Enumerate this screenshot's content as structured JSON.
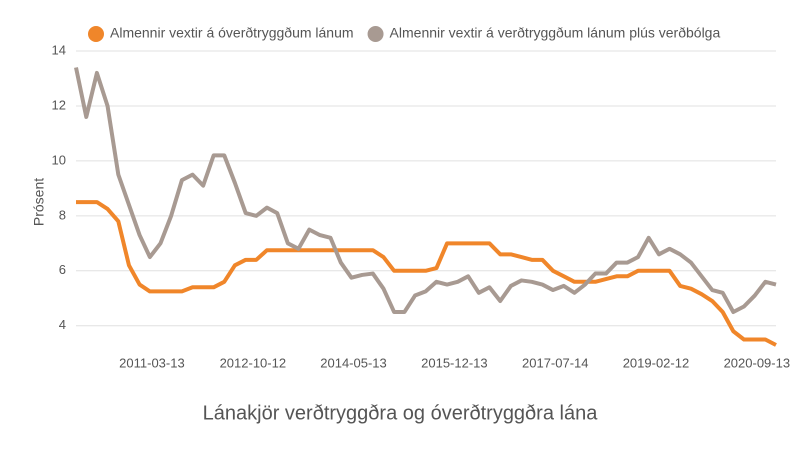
{
  "chart_data": {
    "type": "line",
    "x_label": "Lánakjör verðtryggðra og óverðtryggðra lána",
    "y_label": "Prósent",
    "x": [
      "2010-01-01",
      "2010-03-01",
      "2010-05-01",
      "2010-07-01",
      "2010-09-01",
      "2010-11-01",
      "2011-01-01",
      "2011-03-01",
      "2011-05-01",
      "2011-07-01",
      "2011-09-01",
      "2011-11-01",
      "2012-01-01",
      "2012-03-01",
      "2012-05-01",
      "2012-07-01",
      "2012-09-01",
      "2012-11-01",
      "2013-01-01",
      "2013-03-01",
      "2013-05-01",
      "2013-07-01",
      "2013-09-01",
      "2013-11-01",
      "2014-01-01",
      "2014-03-01",
      "2014-05-01",
      "2014-07-01",
      "2014-09-01",
      "2014-11-01",
      "2015-01-01",
      "2015-03-01",
      "2015-05-01",
      "2015-07-01",
      "2015-09-01",
      "2015-11-01",
      "2016-01-01",
      "2016-03-01",
      "2016-05-01",
      "2016-07-01",
      "2016-09-01",
      "2016-11-01",
      "2017-01-01",
      "2017-03-01",
      "2017-05-01",
      "2017-07-01",
      "2017-09-01",
      "2017-11-01",
      "2018-01-01",
      "2018-03-01",
      "2018-05-01",
      "2018-07-01",
      "2018-09-01",
      "2018-11-01",
      "2019-01-01",
      "2019-03-01",
      "2019-05-01",
      "2019-07-01",
      "2019-09-01",
      "2019-11-01",
      "2020-01-01",
      "2020-03-01",
      "2020-05-01",
      "2020-07-01",
      "2020-09-01",
      "2020-11-01",
      "2021-01-01"
    ],
    "series": [
      {
        "name": "Almennir vextir á óverðtryggðum lánum",
        "color": "#f0862a",
        "values": [
          8.5,
          8.5,
          8.5,
          8.25,
          7.8,
          6.2,
          5.5,
          5.25,
          5.25,
          5.25,
          5.25,
          5.4,
          5.4,
          5.4,
          5.6,
          6.2,
          6.4,
          6.4,
          6.75,
          6.75,
          6.75,
          6.75,
          6.75,
          6.75,
          6.75,
          6.75,
          6.75,
          6.75,
          6.75,
          6.5,
          6.0,
          6.0,
          6.0,
          6.0,
          6.1,
          7.0,
          7.0,
          7.0,
          7.0,
          7.0,
          6.6,
          6.6,
          6.5,
          6.4,
          6.4,
          6.0,
          5.8,
          5.6,
          5.6,
          5.6,
          5.7,
          5.8,
          5.8,
          6.0,
          6.0,
          6.0,
          6.0,
          5.45,
          5.35,
          5.15,
          4.9,
          4.5,
          3.8,
          3.5,
          3.5,
          3.5,
          3.3
        ]
      },
      {
        "name": "Almennir vextir á verðtryggðum lánum plús verðbólga",
        "color": "#a89a92",
        "values": [
          13.4,
          11.6,
          13.2,
          12.0,
          9.5,
          8.4,
          7.3,
          6.5,
          7.0,
          8.0,
          9.3,
          9.5,
          9.1,
          10.2,
          10.2,
          9.2,
          8.1,
          8.0,
          8.3,
          8.1,
          7.0,
          6.8,
          7.5,
          7.3,
          7.2,
          6.3,
          5.75,
          5.85,
          5.9,
          5.35,
          4.5,
          4.5,
          5.1,
          5.25,
          5.6,
          5.5,
          5.6,
          5.8,
          5.2,
          5.4,
          4.9,
          5.45,
          5.65,
          5.6,
          5.5,
          5.3,
          5.45,
          5.2,
          5.5,
          5.9,
          5.9,
          6.3,
          6.3,
          6.5,
          7.2,
          6.6,
          6.8,
          6.6,
          6.3,
          5.8,
          5.3,
          5.2,
          4.5,
          4.7,
          5.1,
          5.6,
          5.5
        ]
      }
    ],
    "xlim": [
      "2010-01-01",
      "2021-01-01"
    ],
    "xticks": [
      "2011-03-13",
      "2012-10-12",
      "2014-05-13",
      "2015-12-13",
      "2017-07-14",
      "2019-02-12",
      "2020-09-13"
    ],
    "ylim": [
      3.3,
      14.4
    ],
    "yticks": [
      4,
      6,
      8,
      10,
      12,
      14
    ],
    "grid": true,
    "legend": "top"
  }
}
